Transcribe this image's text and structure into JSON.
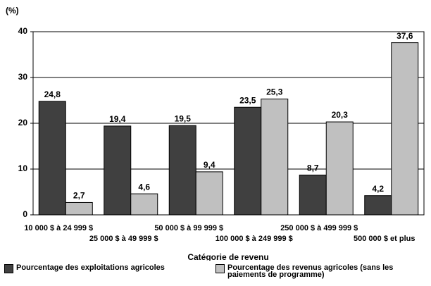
{
  "chart_data": {
    "type": "bar",
    "y_unit": "(%)",
    "xlabel": "Catégorie de revenu",
    "categories": [
      "10 000 $ à 24 999 $",
      "25 000 $ à 49 999 $",
      "50 000 $ à 99 999 $",
      "100 000 $ à 249 999 $",
      "250 000 $ à 499 999 $",
      "500 000 $ et plus"
    ],
    "series": [
      {
        "name": "Pourcentage des exploitations agricoles",
        "color": "#404040",
        "values": [
          24.8,
          19.4,
          19.5,
          23.5,
          8.7,
          4.2
        ],
        "value_labels": [
          "24,8",
          "19,4",
          "19,5",
          "23,5",
          "8,7",
          "4,2"
        ]
      },
      {
        "name": "Pourcentage des revenus agricoles (sans les paiements de programme)",
        "color": "#c0c0c0",
        "values": [
          2.7,
          4.6,
          9.4,
          25.3,
          20.3,
          37.6
        ],
        "value_labels": [
          "2,7",
          "4,6",
          "9,4",
          "25,3",
          "20,3",
          "37,6"
        ]
      }
    ],
    "ylim": [
      0,
      40
    ],
    "yticks": [
      0,
      10,
      20,
      30,
      40
    ],
    "grid": true
  }
}
